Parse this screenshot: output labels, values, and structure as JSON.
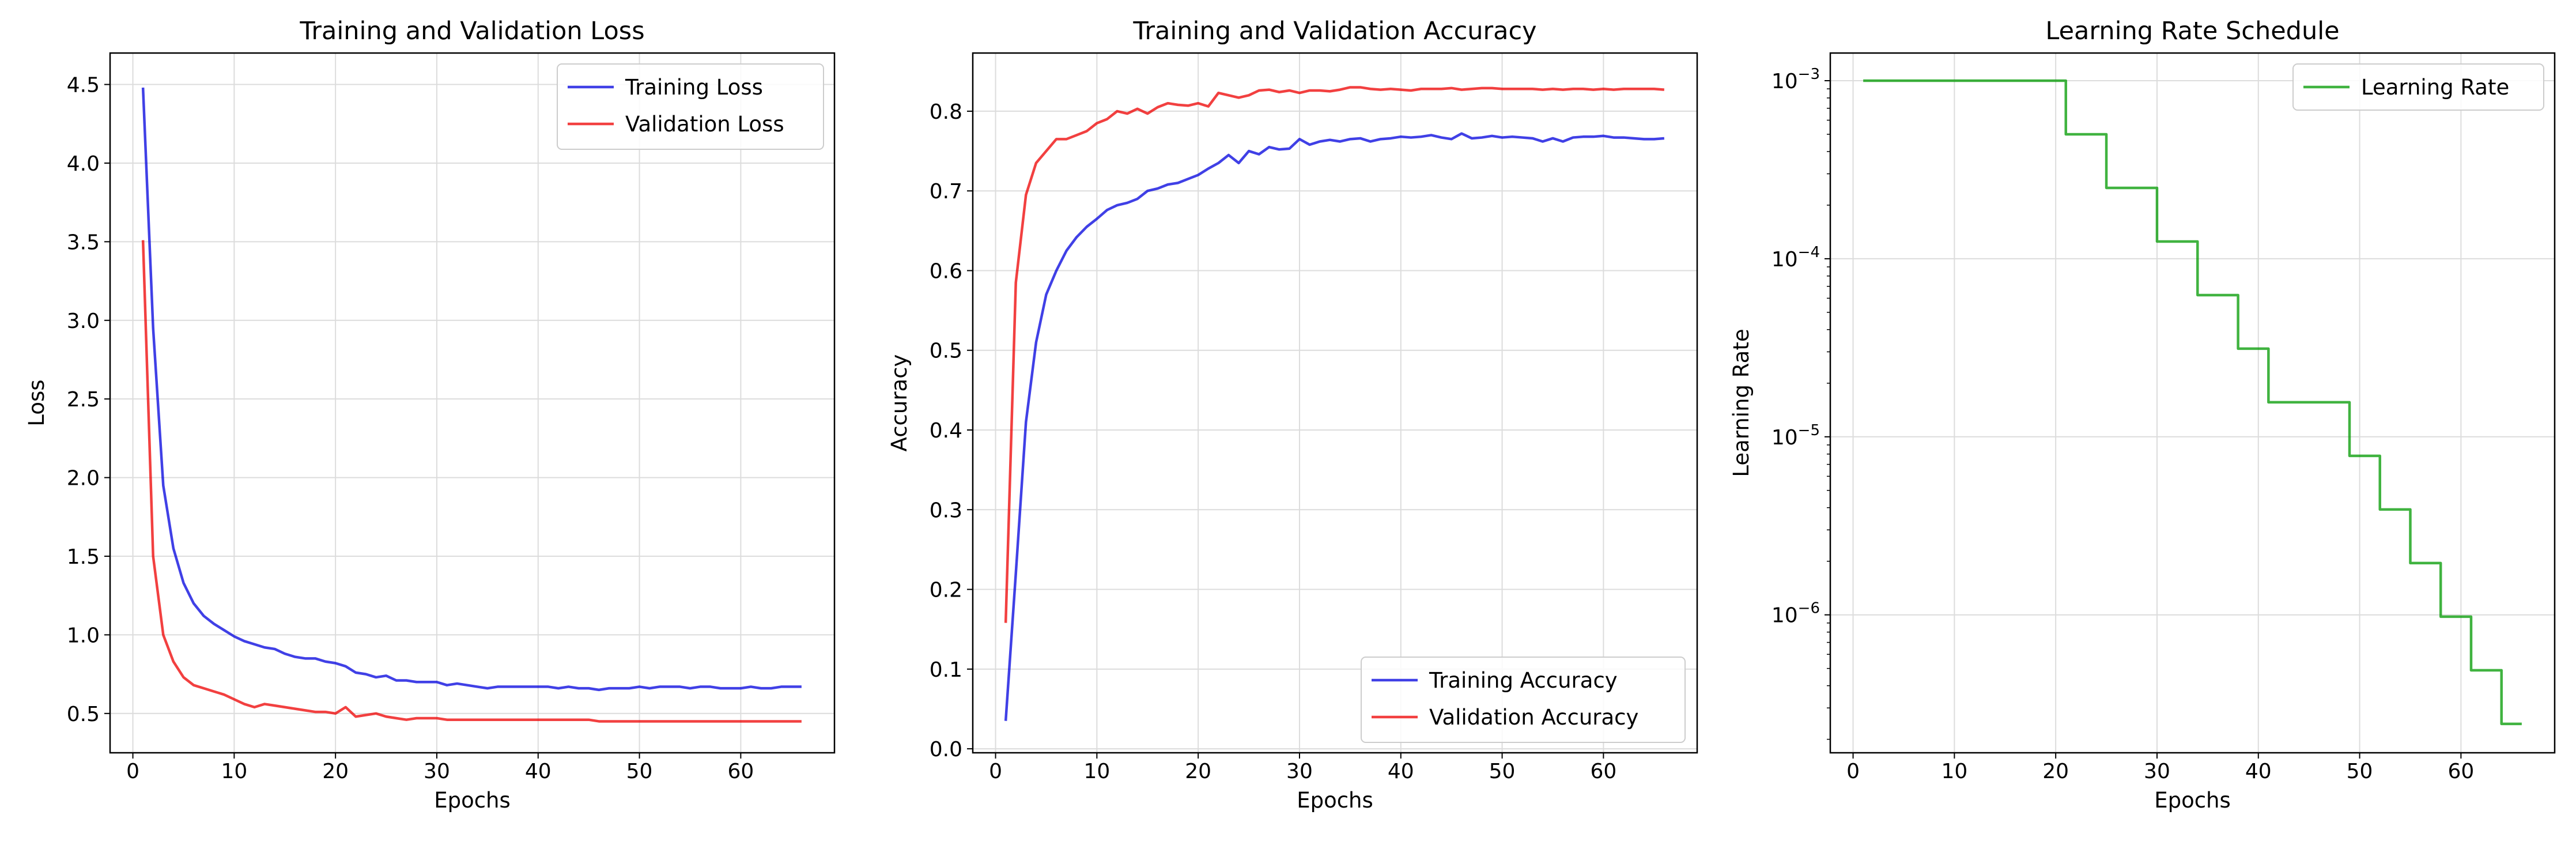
{
  "chart_data": [
    {
      "type": "line",
      "title": "Training and Validation Loss",
      "xlabel": "Epochs",
      "ylabel": "Loss",
      "xlim": [
        -2.25,
        69.25
      ],
      "ylim": [
        0.25,
        4.7
      ],
      "xticks": [
        0,
        10,
        20,
        30,
        40,
        50,
        60
      ],
      "yticks": [
        0.5,
        1.0,
        1.5,
        2.0,
        2.5,
        3.0,
        3.5,
        4.0,
        4.5
      ],
      "ytick_labels": [
        "0.5",
        "1.0",
        "1.5",
        "2.0",
        "2.5",
        "3.0",
        "3.5",
        "4.0",
        "4.5"
      ],
      "grid": true,
      "legend_position": "upper right",
      "series": [
        {
          "name": "Training Loss",
          "color": "#0000dd",
          "x": [
            1,
            2,
            3,
            4,
            5,
            6,
            7,
            8,
            9,
            10,
            11,
            12,
            13,
            14,
            15,
            16,
            17,
            18,
            19,
            20,
            21,
            22,
            23,
            24,
            25,
            26,
            27,
            28,
            29,
            30,
            31,
            32,
            33,
            34,
            35,
            36,
            37,
            38,
            39,
            40,
            41,
            42,
            43,
            44,
            45,
            46,
            47,
            48,
            49,
            50,
            51,
            52,
            53,
            54,
            55,
            56,
            57,
            58,
            59,
            60,
            61,
            62,
            63,
            64,
            65,
            66
          ],
          "y": [
            4.48,
            2.95,
            1.95,
            1.55,
            1.33,
            1.2,
            1.12,
            1.07,
            1.03,
            0.99,
            0.96,
            0.94,
            0.92,
            0.91,
            0.88,
            0.86,
            0.85,
            0.85,
            0.83,
            0.82,
            0.8,
            0.76,
            0.75,
            0.73,
            0.74,
            0.71,
            0.71,
            0.7,
            0.7,
            0.7,
            0.68,
            0.69,
            0.68,
            0.67,
            0.66,
            0.67,
            0.67,
            0.67,
            0.67,
            0.67,
            0.67,
            0.66,
            0.67,
            0.66,
            0.66,
            0.65,
            0.66,
            0.66,
            0.66,
            0.67,
            0.66,
            0.67,
            0.67,
            0.67,
            0.66,
            0.67,
            0.67,
            0.66,
            0.66,
            0.66,
            0.67,
            0.66,
            0.66,
            0.67,
            0.67,
            0.67
          ]
        },
        {
          "name": "Validation Loss",
          "color": "#ee0000",
          "x": [
            1,
            2,
            3,
            4,
            5,
            6,
            7,
            8,
            9,
            10,
            11,
            12,
            13,
            14,
            15,
            16,
            17,
            18,
            19,
            20,
            21,
            22,
            23,
            24,
            25,
            26,
            27,
            28,
            29,
            30,
            31,
            32,
            33,
            34,
            35,
            36,
            37,
            38,
            39,
            40,
            41,
            42,
            43,
            44,
            45,
            46,
            47,
            48,
            49,
            50,
            51,
            52,
            53,
            54,
            55,
            56,
            57,
            58,
            59,
            60,
            61,
            62,
            63,
            64,
            65,
            66
          ],
          "y": [
            3.51,
            1.5,
            1.0,
            0.83,
            0.73,
            0.68,
            0.66,
            0.64,
            0.62,
            0.59,
            0.56,
            0.54,
            0.56,
            0.55,
            0.54,
            0.53,
            0.52,
            0.51,
            0.51,
            0.5,
            0.54,
            0.48,
            0.49,
            0.5,
            0.48,
            0.47,
            0.46,
            0.47,
            0.47,
            0.47,
            0.46,
            0.46,
            0.46,
            0.46,
            0.46,
            0.46,
            0.46,
            0.46,
            0.46,
            0.46,
            0.46,
            0.46,
            0.46,
            0.46,
            0.46,
            0.45,
            0.45,
            0.45,
            0.45,
            0.45,
            0.45,
            0.45,
            0.45,
            0.45,
            0.45,
            0.45,
            0.45,
            0.45,
            0.45,
            0.45,
            0.45,
            0.45,
            0.45,
            0.45,
            0.45,
            0.45
          ]
        }
      ]
    },
    {
      "type": "line",
      "title": "Training and Validation Accuracy",
      "xlabel": "Epochs",
      "ylabel": "Accuracy",
      "xlim": [
        -2.25,
        69.25
      ],
      "ylim": [
        -0.005,
        0.873
      ],
      "xticks": [
        0,
        10,
        20,
        30,
        40,
        50,
        60
      ],
      "yticks": [
        0.0,
        0.1,
        0.2,
        0.3,
        0.4,
        0.5,
        0.6,
        0.7,
        0.8
      ],
      "ytick_labels": [
        "0.0",
        "0.1",
        "0.2",
        "0.3",
        "0.4",
        "0.5",
        "0.6",
        "0.7",
        "0.8"
      ],
      "grid": true,
      "legend_position": "lower right",
      "series": [
        {
          "name": "Training Accuracy",
          "color": "#0000dd",
          "x": [
            1,
            2,
            3,
            4,
            5,
            6,
            7,
            8,
            9,
            10,
            11,
            12,
            13,
            14,
            15,
            16,
            17,
            18,
            19,
            20,
            21,
            22,
            23,
            24,
            25,
            26,
            27,
            28,
            29,
            30,
            31,
            32,
            33,
            34,
            35,
            36,
            37,
            38,
            39,
            40,
            41,
            42,
            43,
            44,
            45,
            46,
            47,
            48,
            49,
            50,
            51,
            52,
            53,
            54,
            55,
            56,
            57,
            58,
            59,
            60,
            61,
            62,
            63,
            64,
            65,
            66
          ],
          "y": [
            0.035,
            0.22,
            0.41,
            0.51,
            0.57,
            0.6,
            0.625,
            0.642,
            0.655,
            0.665,
            0.676,
            0.682,
            0.685,
            0.69,
            0.7,
            0.703,
            0.708,
            0.71,
            0.715,
            0.72,
            0.728,
            0.735,
            0.745,
            0.735,
            0.75,
            0.746,
            0.755,
            0.752,
            0.753,
            0.765,
            0.758,
            0.762,
            0.764,
            0.762,
            0.765,
            0.766,
            0.762,
            0.765,
            0.766,
            0.768,
            0.767,
            0.768,
            0.77,
            0.767,
            0.765,
            0.772,
            0.766,
            0.767,
            0.769,
            0.767,
            0.768,
            0.767,
            0.766,
            0.762,
            0.766,
            0.762,
            0.767,
            0.768,
            0.768,
            0.769,
            0.767,
            0.767,
            0.766,
            0.765,
            0.765,
            0.766
          ]
        },
        {
          "name": "Validation Accuracy",
          "color": "#ee0000",
          "x": [
            1,
            2,
            3,
            4,
            5,
            6,
            7,
            8,
            9,
            10,
            11,
            12,
            13,
            14,
            15,
            16,
            17,
            18,
            19,
            20,
            21,
            22,
            23,
            24,
            25,
            26,
            27,
            28,
            29,
            30,
            31,
            32,
            33,
            34,
            35,
            36,
            37,
            38,
            39,
            40,
            41,
            42,
            43,
            44,
            45,
            46,
            47,
            48,
            49,
            50,
            51,
            52,
            53,
            54,
            55,
            56,
            57,
            58,
            59,
            60,
            61,
            62,
            63,
            64,
            65,
            66
          ],
          "y": [
            0.158,
            0.585,
            0.695,
            0.735,
            0.75,
            0.765,
            0.765,
            0.77,
            0.775,
            0.785,
            0.79,
            0.8,
            0.797,
            0.803,
            0.797,
            0.805,
            0.81,
            0.808,
            0.807,
            0.81,
            0.806,
            0.823,
            0.82,
            0.817,
            0.82,
            0.826,
            0.827,
            0.824,
            0.826,
            0.823,
            0.826,
            0.826,
            0.825,
            0.827,
            0.83,
            0.83,
            0.828,
            0.827,
            0.828,
            0.827,
            0.826,
            0.828,
            0.828,
            0.828,
            0.829,
            0.827,
            0.828,
            0.829,
            0.829,
            0.828,
            0.828,
            0.828,
            0.828,
            0.827,
            0.828,
            0.827,
            0.828,
            0.828,
            0.827,
            0.828,
            0.827,
            0.828,
            0.828,
            0.828,
            0.828,
            0.827
          ]
        }
      ]
    },
    {
      "type": "line",
      "title": "Learning Rate Schedule",
      "xlabel": "Epochs",
      "ylabel": "Learning Rate",
      "yscale": "log",
      "xlim": [
        -2.25,
        69.25
      ],
      "ylim": [
        1.68e-07,
        0.00143
      ],
      "xticks": [
        0,
        10,
        20,
        30,
        40,
        50,
        60
      ],
      "yticks": [
        1e-06,
        1e-05,
        0.0001,
        0.001
      ],
      "ytick_labels": [
        "10",
        "10",
        "10",
        "10"
      ],
      "ytick_exponents": [
        "−6",
        "−5",
        "−4",
        "−3"
      ],
      "grid": true,
      "legend_position": "upper right",
      "series": [
        {
          "name": "Learning Rate",
          "color": "#009900",
          "x": [
            1,
            2,
            3,
            4,
            5,
            6,
            7,
            8,
            9,
            10,
            11,
            12,
            13,
            14,
            15,
            16,
            17,
            18,
            19,
            20,
            21,
            22,
            23,
            24,
            25,
            26,
            27,
            28,
            29,
            30,
            31,
            32,
            33,
            34,
            35,
            36,
            37,
            38,
            39,
            40,
            41,
            42,
            43,
            44,
            45,
            46,
            47,
            48,
            49,
            50,
            51,
            52,
            53,
            54,
            55,
            56,
            57,
            58,
            59,
            60,
            61,
            62,
            63,
            64,
            65,
            66
          ],
          "y": [
            0.001,
            0.001,
            0.001,
            0.001,
            0.001,
            0.001,
            0.001,
            0.001,
            0.001,
            0.001,
            0.001,
            0.001,
            0.001,
            0.001,
            0.001,
            0.001,
            0.001,
            0.001,
            0.001,
            0.001,
            0.0005,
            0.0005,
            0.0005,
            0.0005,
            0.00025,
            0.00025,
            0.00025,
            0.00025,
            0.00025,
            0.000125,
            0.000125,
            0.000125,
            0.000125,
            6.25e-05,
            6.25e-05,
            6.25e-05,
            6.25e-05,
            3.125e-05,
            3.125e-05,
            3.125e-05,
            1.5625e-05,
            1.5625e-05,
            1.5625e-05,
            1.5625e-05,
            1.5625e-05,
            1.5625e-05,
            1.5625e-05,
            1.5625e-05,
            7.8125e-06,
            7.8125e-06,
            7.8125e-06,
            3.90625e-06,
            3.90625e-06,
            3.90625e-06,
            1.953125e-06,
            1.953125e-06,
            1.953125e-06,
            9.765625e-07,
            9.765625e-07,
            9.765625e-07,
            4.8828125e-07,
            4.8828125e-07,
            4.8828125e-07,
            2.44140625e-07,
            2.44140625e-07,
            2.44140625e-07
          ],
          "drawstyle": "steps-post"
        }
      ]
    }
  ]
}
